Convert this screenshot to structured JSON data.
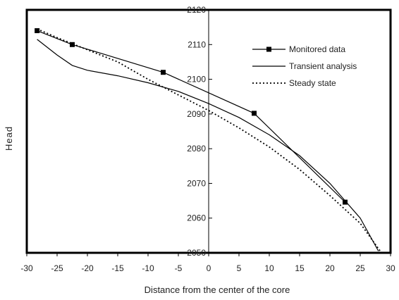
{
  "chart_data": {
    "type": "line",
    "xlabel": "Distance from the center of the core",
    "ylabel": "Head",
    "xlim": [
      -30,
      30
    ],
    "ylim": [
      2050,
      2120
    ],
    "x_ticks": [
      -30,
      -25,
      -20,
      -15,
      -10,
      -5,
      0,
      5,
      10,
      15,
      20,
      25,
      30
    ],
    "y_ticks": [
      2060,
      2070,
      2080,
      2090,
      2100,
      2110
    ],
    "y_tick_labels_clipped": [
      2050,
      2120
    ],
    "legend_position": "top-right",
    "grid": false,
    "series": [
      {
        "name": "Monitored data",
        "style": "solid-with-square-markers",
        "color": "#000000",
        "points": [
          [
            -28.3,
            2114.0
          ],
          [
            -22.5,
            2110.0
          ],
          [
            -7.5,
            2102.0
          ],
          [
            7.5,
            2090.2
          ],
          [
            22.5,
            2064.6
          ]
        ]
      },
      {
        "name": "Transient analysis",
        "style": "solid",
        "color": "#000000",
        "points": [
          [
            -28.3,
            2111.5
          ],
          [
            -25,
            2107.0
          ],
          [
            -22.5,
            2104.0
          ],
          [
            -20,
            2102.6
          ],
          [
            -15,
            2101.0
          ],
          [
            -10,
            2099.0
          ],
          [
            -5,
            2096.5
          ],
          [
            0,
            2093.0
          ],
          [
            5,
            2089.0
          ],
          [
            10,
            2084.0
          ],
          [
            15,
            2078.0
          ],
          [
            20,
            2070.0
          ],
          [
            25,
            2060.0
          ],
          [
            28,
            2050.5
          ]
        ]
      },
      {
        "name": "Steady state",
        "style": "dotted",
        "color": "#000000",
        "points": [
          [
            -28.3,
            2114.5
          ],
          [
            -25,
            2112.0
          ],
          [
            -20,
            2108.5
          ],
          [
            -15,
            2105.0
          ],
          [
            -10,
            2100.0
          ],
          [
            -5,
            2095.5
          ],
          [
            0,
            2091.0
          ],
          [
            5,
            2086.0
          ],
          [
            10,
            2080.5
          ],
          [
            15,
            2074.0
          ],
          [
            20,
            2066.5
          ],
          [
            25,
            2058.5
          ],
          [
            28.5,
            2050.0
          ]
        ]
      }
    ]
  }
}
